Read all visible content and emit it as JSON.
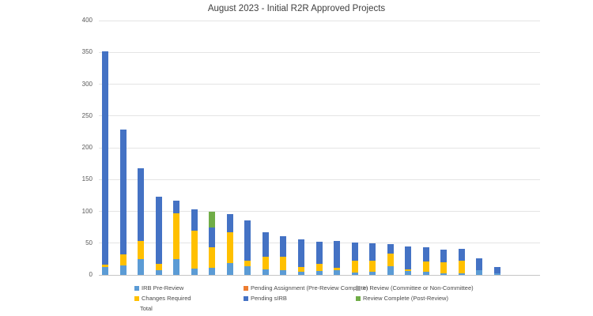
{
  "title": "August 2023 - Initial R2R Approved Projects",
  "total_label": "Total",
  "colors": {
    "background": "#ffffff",
    "gridline": "#e4e4e4",
    "axis_line": "#c6c6c6",
    "tick_text": "#595959",
    "title_text": "#3f3f3f",
    "legend_text": "#4a4a4a"
  },
  "chart_data": {
    "type": "bar",
    "stacked": true,
    "title": "August 2023 - Initial R2R Approved Projects",
    "xlabel": "",
    "ylabel": "",
    "ylim": [
      0,
      400
    ],
    "yticks": [
      0,
      50,
      100,
      150,
      200,
      250,
      300,
      350,
      400
    ],
    "grid": true,
    "legend_position": "bottom",
    "x_tick_labels": "none",
    "n_bars": 23,
    "bar_totals": [
      352,
      228,
      168,
      123,
      117,
      103,
      99,
      96,
      86,
      67,
      61,
      56,
      52,
      54,
      51,
      50,
      48,
      45,
      44,
      40,
      41,
      26,
      13
    ],
    "series": [
      {
        "name": "IRB Pre-Review",
        "color": "#5B9BD5",
        "values": [
          13,
          15,
          25,
          7,
          25,
          10,
          11,
          19,
          14,
          9,
          7,
          5,
          6,
          8,
          4,
          5,
          14,
          6,
          5,
          2,
          3,
          7,
          2
        ]
      },
      {
        "name": "Pending Assignment (Pre-Review Complete)",
        "color": "#ED7D31",
        "values": [
          0,
          0,
          0,
          0,
          0,
          0,
          0,
          0,
          0,
          0,
          0,
          0,
          0,
          0,
          0,
          0,
          0,
          0,
          0,
          0,
          0,
          0,
          0
        ]
      },
      {
        "name": "In Review (Committee or Non-Committee)",
        "color": "#A5A5A5",
        "values": [
          0,
          0,
          0,
          0,
          0,
          0,
          0,
          0,
          0,
          0,
          0,
          0,
          0,
          0,
          0,
          0,
          0,
          0,
          0,
          0,
          0,
          0,
          0
        ]
      },
      {
        "name": "Changes Required",
        "color": "#FFC000",
        "values": [
          3,
          17,
          28,
          10,
          72,
          60,
          33,
          48,
          9,
          19,
          22,
          7,
          12,
          3,
          19,
          18,
          19,
          3,
          16,
          18,
          19,
          0,
          0
        ]
      },
      {
        "name": "Pending sIRB",
        "color": "#4472C4",
        "values": [
          336,
          196,
          115,
          106,
          20,
          33,
          30,
          29,
          63,
          39,
          32,
          44,
          34,
          43,
          28,
          27,
          15,
          36,
          23,
          20,
          19,
          19,
          11
        ]
      },
      {
        "name": "Review Complete (Post-Review)",
        "color": "#70AD47",
        "values": [
          0,
          0,
          0,
          0,
          0,
          0,
          25,
          0,
          0,
          0,
          0,
          0,
          0,
          0,
          0,
          0,
          0,
          0,
          0,
          0,
          0,
          0,
          0
        ]
      }
    ]
  }
}
